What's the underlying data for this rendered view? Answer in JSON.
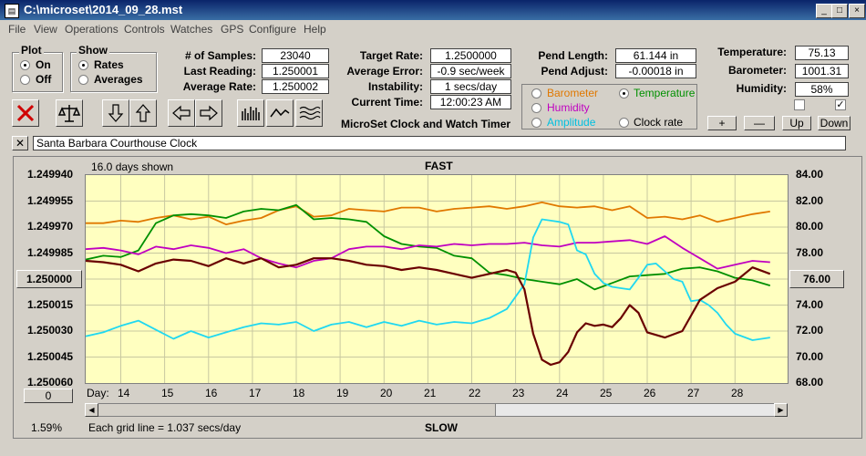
{
  "window": {
    "title": "C:\\microset\\2014_09_28.mst",
    "min": "_",
    "max": "□",
    "close": "×"
  },
  "menu": [
    "File",
    "View",
    "Operations",
    "Controls",
    "Watches",
    "GPS",
    "Configure",
    "Help"
  ],
  "plot_group": {
    "label": "Plot",
    "on": "On",
    "off": "Off",
    "selected": "On"
  },
  "show_group": {
    "label": "Show",
    "rates": "Rates",
    "averages": "Averages",
    "selected": "Rates"
  },
  "stats": {
    "samples_label": "# of Samples:",
    "samples": "23040",
    "last_label": "Last Reading:",
    "last": "1.250001",
    "avg_label": "Average Rate:",
    "avg": "1.250002",
    "target_label": "Target Rate:",
    "target": "1.2500000",
    "avgerr_label": "Average Error:",
    "avgerr": "-0.9 sec/week",
    "instab_label": "Instability:",
    "instab": "1 secs/day",
    "curtime_label": "Current Time:",
    "curtime": "12:00:23 AM",
    "pendlen_label": "Pend Length:",
    "pendlen": "61.144 in",
    "pendadj_label": "Pend Adjust:",
    "pendadj": "-0.00018 in",
    "temp_label": "Temperature:",
    "temp": "75.13",
    "baro_label": "Barometer:",
    "baro": "1001.31",
    "hum_label": "Humidity:",
    "hum": "58%"
  },
  "app_caption": "MicroSet Clock and Watch Timer",
  "sensor_select": {
    "barometer": "Barometer",
    "temperature": "Temperature",
    "humidity": "Humidity",
    "amplitude": "Amplitude",
    "clockrate": "Clock rate",
    "selected": "Temperature",
    "colors": {
      "barometer": "#e07800",
      "temperature": "#009000",
      "humidity": "#c000c0",
      "amplitude": "#00c0e0",
      "clockrate": "#000000"
    }
  },
  "sensor_buttons": {
    "plus": "+",
    "minus": "—",
    "up": "Up",
    "down": "Down"
  },
  "watch_name": "Santa Barbara Courthouse Clock",
  "chart_data": {
    "type": "line",
    "days_shown": "16.0 days shown",
    "top_label": "FAST",
    "bottom_label": "SLOW",
    "scale_note": "Each grid line = 1.037 secs/day",
    "percent": "1.59%",
    "left_axis": [
      "1.249940",
      "1.249955",
      "1.249970",
      "1.249985",
      "1.250000",
      "1.250015",
      "1.250030",
      "1.250045",
      "1.250060"
    ],
    "left_center_button": "1.250000",
    "right_axis": [
      "84.00",
      "82.00",
      "80.00",
      "78.00",
      "76.00",
      "74.00",
      "72.00",
      "70.00",
      "68.00"
    ],
    "right_center_button": "76.00",
    "xlim": [
      13.2,
      29.2
    ],
    "x_label": "Day:",
    "x_ticks": [
      "14",
      "15",
      "16",
      "17",
      "18",
      "19",
      "20",
      "21",
      "22",
      "23",
      "24",
      "25",
      "26",
      "27",
      "28"
    ],
    "bottom_left_button": "0",
    "series": [
      {
        "name": "Barometer",
        "color": "#e07800",
        "x": [
          13.2,
          13.6,
          14.0,
          14.4,
          14.8,
          15.2,
          15.6,
          16.0,
          16.4,
          16.8,
          17.2,
          17.6,
          18.0,
          18.4,
          18.8,
          19.2,
          19.6,
          20.0,
          20.4,
          20.8,
          21.2,
          21.6,
          22.0,
          22.4,
          22.8,
          23.2,
          23.6,
          24.0,
          24.4,
          24.8,
          25.2,
          25.6,
          26.0,
          26.4,
          26.8,
          27.2,
          27.6,
          28.0,
          28.4,
          28.8
        ],
        "y": [
          80.3,
          80.3,
          80.5,
          80.4,
          80.7,
          80.9,
          80.6,
          80.8,
          80.2,
          80.5,
          80.7,
          81.3,
          81.6,
          80.8,
          80.9,
          81.4,
          81.3,
          81.2,
          81.5,
          81.5,
          81.2,
          81.4,
          81.5,
          81.6,
          81.4,
          81.6,
          81.9,
          81.6,
          81.5,
          81.6,
          81.3,
          81.6,
          80.7,
          80.8,
          80.6,
          80.9,
          80.4,
          80.7,
          81.0,
          81.2
        ]
      },
      {
        "name": "Temperature",
        "color": "#009000",
        "x": [
          13.2,
          13.6,
          14.0,
          14.4,
          14.8,
          15.2,
          15.6,
          16.0,
          16.4,
          16.8,
          17.2,
          17.6,
          18.0,
          18.4,
          18.8,
          19.2,
          19.6,
          20.0,
          20.4,
          20.8,
          21.2,
          21.6,
          22.0,
          22.4,
          22.8,
          23.2,
          23.6,
          24.0,
          24.4,
          24.8,
          25.2,
          25.6,
          26.0,
          26.4,
          26.8,
          27.2,
          27.6,
          28.0,
          28.4,
          28.8
        ],
        "y": [
          77.5,
          77.8,
          77.7,
          78.2,
          80.3,
          80.9,
          81.0,
          80.9,
          80.7,
          81.2,
          81.4,
          81.3,
          81.7,
          80.6,
          80.7,
          80.6,
          80.4,
          79.3,
          78.7,
          78.5,
          78.4,
          77.8,
          77.6,
          76.5,
          76.3,
          76.0,
          75.8,
          75.6,
          76.0,
          75.2,
          75.7,
          76.2,
          76.3,
          76.4,
          76.8,
          76.9,
          76.6,
          76.1,
          75.9,
          75.5
        ]
      },
      {
        "name": "Humidity",
        "color": "#c000c0",
        "x": [
          13.2,
          13.6,
          14.0,
          14.4,
          14.8,
          15.2,
          15.6,
          16.0,
          16.4,
          16.8,
          17.2,
          17.6,
          18.0,
          18.4,
          18.8,
          19.2,
          19.6,
          20.0,
          20.4,
          20.8,
          21.2,
          21.6,
          22.0,
          22.4,
          22.8,
          23.2,
          23.6,
          24.0,
          24.4,
          24.8,
          25.2,
          25.6,
          26.0,
          26.4,
          26.8,
          27.2,
          27.6,
          28.0,
          28.4,
          28.8
        ],
        "y": [
          78.3,
          78.4,
          78.2,
          77.9,
          78.5,
          78.3,
          78.6,
          78.4,
          78.0,
          78.3,
          77.6,
          77.2,
          76.9,
          77.4,
          77.6,
          78.3,
          78.5,
          78.5,
          78.3,
          78.6,
          78.5,
          78.7,
          78.6,
          78.7,
          78.7,
          78.8,
          78.6,
          78.5,
          78.8,
          78.8,
          78.9,
          79.0,
          78.7,
          79.3,
          78.4,
          77.6,
          76.8,
          77.1,
          77.4,
          77.3
        ]
      },
      {
        "name": "Amplitude",
        "color": "#20d8f0",
        "x": [
          13.2,
          13.6,
          14.0,
          14.4,
          14.8,
          15.2,
          15.6,
          16.0,
          16.4,
          16.8,
          17.2,
          17.6,
          18.0,
          18.4,
          18.8,
          19.2,
          19.6,
          20.0,
          20.4,
          20.8,
          21.2,
          21.6,
          22.0,
          22.4,
          22.8,
          23.2,
          23.4,
          23.6,
          23.8,
          24.0,
          24.2,
          24.4,
          24.6,
          24.8,
          25.0,
          25.2,
          25.4,
          25.6,
          25.8,
          26.0,
          26.2,
          26.4,
          26.6,
          26.8,
          27.0,
          27.2,
          27.4,
          27.6,
          27.8,
          28.0,
          28.4,
          28.8
        ],
        "y": [
          71.6,
          71.9,
          72.4,
          72.8,
          72.1,
          71.4,
          72.0,
          71.5,
          71.9,
          72.3,
          72.6,
          72.5,
          72.7,
          72.0,
          72.5,
          72.7,
          72.3,
          72.7,
          72.4,
          72.8,
          72.5,
          72.7,
          72.6,
          73.0,
          73.7,
          75.6,
          79.2,
          80.6,
          80.5,
          80.4,
          80.2,
          78.2,
          77.9,
          76.4,
          75.7,
          75.4,
          75.3,
          75.2,
          76.1,
          77.1,
          77.2,
          76.6,
          76.0,
          75.8,
          74.3,
          74.4,
          74.0,
          73.4,
          72.5,
          71.8,
          71.3,
          71.5
        ]
      },
      {
        "name": "Clock rate",
        "color": "#6a0000",
        "x": [
          13.2,
          13.6,
          14.0,
          14.4,
          14.8,
          15.2,
          15.6,
          16.0,
          16.4,
          16.8,
          17.2,
          17.6,
          18.0,
          18.4,
          18.8,
          19.2,
          19.6,
          20.0,
          20.4,
          20.8,
          21.2,
          21.6,
          22.0,
          22.4,
          22.8,
          23.0,
          23.2,
          23.4,
          23.6,
          23.8,
          24.0,
          24.2,
          24.4,
          24.6,
          24.8,
          25.0,
          25.2,
          25.4,
          25.6,
          25.8,
          26.0,
          26.4,
          26.8,
          27.2,
          27.6,
          28.0,
          28.4,
          28.8
        ],
        "y": [
          77.4,
          77.3,
          77.1,
          76.6,
          77.2,
          77.5,
          77.4,
          77.0,
          77.6,
          77.2,
          77.6,
          76.9,
          77.1,
          77.6,
          77.6,
          77.4,
          77.1,
          77.0,
          76.7,
          76.9,
          76.7,
          76.4,
          76.1,
          76.4,
          76.7,
          76.5,
          75.2,
          71.8,
          69.8,
          69.4,
          69.6,
          70.4,
          71.9,
          72.6,
          72.4,
          72.5,
          72.3,
          73.0,
          74.0,
          73.4,
          71.9,
          71.5,
          72.0,
          74.4,
          75.3,
          75.8,
          76.9,
          76.4
        ]
      }
    ]
  }
}
